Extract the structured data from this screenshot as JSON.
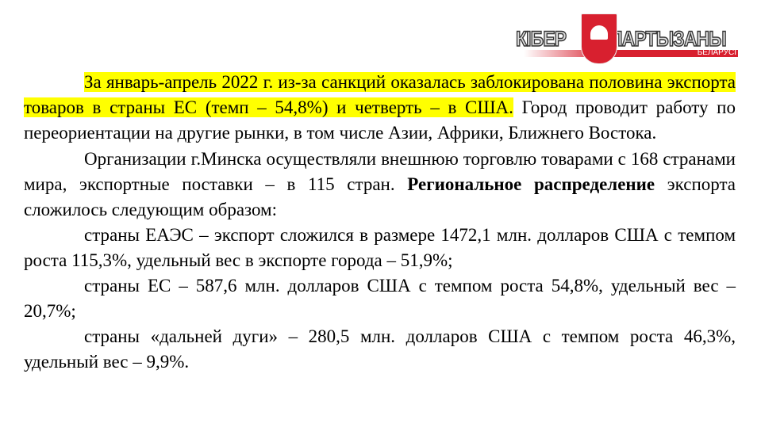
{
  "logo": {
    "word1": "КІБЕР",
    "word2": "ПАРТЫЗАНЫ",
    "sub": "БЕЛАРУСІ",
    "accent": "#d8202f"
  },
  "paragraphs": [
    {
      "highlighted": "За январь-апрель 2022 г. из-за санкций оказалась заблокирована половина экспорта товаров в страны ЕС (темп – 54,8%) и четверть – в США.",
      "rest": " Город проводит работу по переориентации на другие рынки, в том числе Азии, Африки, Ближнего Востока."
    },
    {
      "text1": "Организации г.Минска осуществляли внешнюю торговлю товарами с 168 странами мира, экспортные поставки – в 115 стран. ",
      "bold": "Региональное распределение",
      "text2": " экспорта сложилось следующим образом:"
    },
    {
      "text": "страны ЕАЭС – экспорт сложился в размере 1472,1 млн. долларов США с темпом роста 115,3%, удельный вес в экспорте города – 51,9%;"
    },
    {
      "text": "страны ЕС – 587,6 млн. долларов США с темпом роста 54,8%, удельный вес – 20,7%;"
    },
    {
      "text": "страны «дальней дуги» – 280,5 млн. долларов США с темпом роста 46,3%, удельный вес – 9,9%."
    }
  ],
  "highlight_color": "#ffff00"
}
